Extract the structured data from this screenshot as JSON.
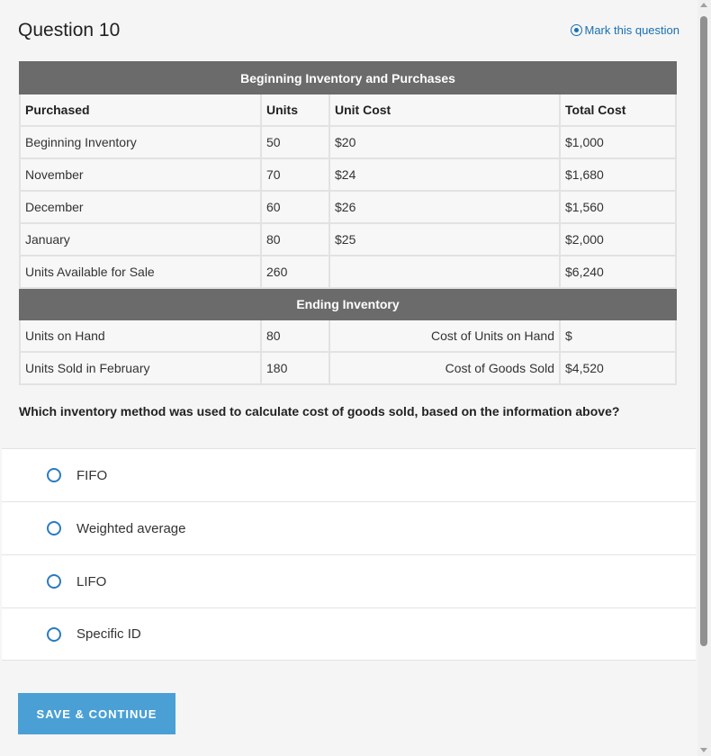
{
  "header": {
    "title": "Question 10",
    "mark_label": "Mark this question"
  },
  "table": {
    "section_title": "Beginning Inventory and Purchases",
    "columns": [
      "Purchased",
      "Units",
      "Unit Cost",
      "Total Cost"
    ],
    "rows": [
      {
        "label": "Beginning Inventory",
        "units": "50",
        "unit_cost": "$20",
        "total": "$1,000"
      },
      {
        "label": "November",
        "units": "70",
        "unit_cost": "$24",
        "total": "$1,680"
      },
      {
        "label": "December",
        "units": "60",
        "unit_cost": "$26",
        "total": "$1,560"
      },
      {
        "label": "January",
        "units": "80",
        "unit_cost": "$25",
        "total": "$2,000"
      },
      {
        "label": "Units Available for Sale",
        "units": "260",
        "unit_cost": "",
        "total": "$6,240"
      }
    ],
    "ending_title": "Ending Inventory",
    "ending_rows": [
      {
        "label": "Units on Hand",
        "units": "80",
        "cost_label": "Cost of Units on Hand",
        "value": "$"
      },
      {
        "label": "Units Sold in February",
        "units": "180",
        "cost_label": "Cost of Goods Sold",
        "value": "$4,520"
      }
    ]
  },
  "question": {
    "prompt": "Which inventory method was used to calculate cost of goods sold, based on the information above?",
    "options": [
      "FIFO",
      "Weighted average",
      "LIFO",
      "Specific ID"
    ]
  },
  "footer": {
    "save_label": "SAVE & CONTINUE"
  },
  "colors": {
    "accent": "#4aa0d5",
    "link": "#1a6fb5",
    "band": "#6b6b6b"
  }
}
